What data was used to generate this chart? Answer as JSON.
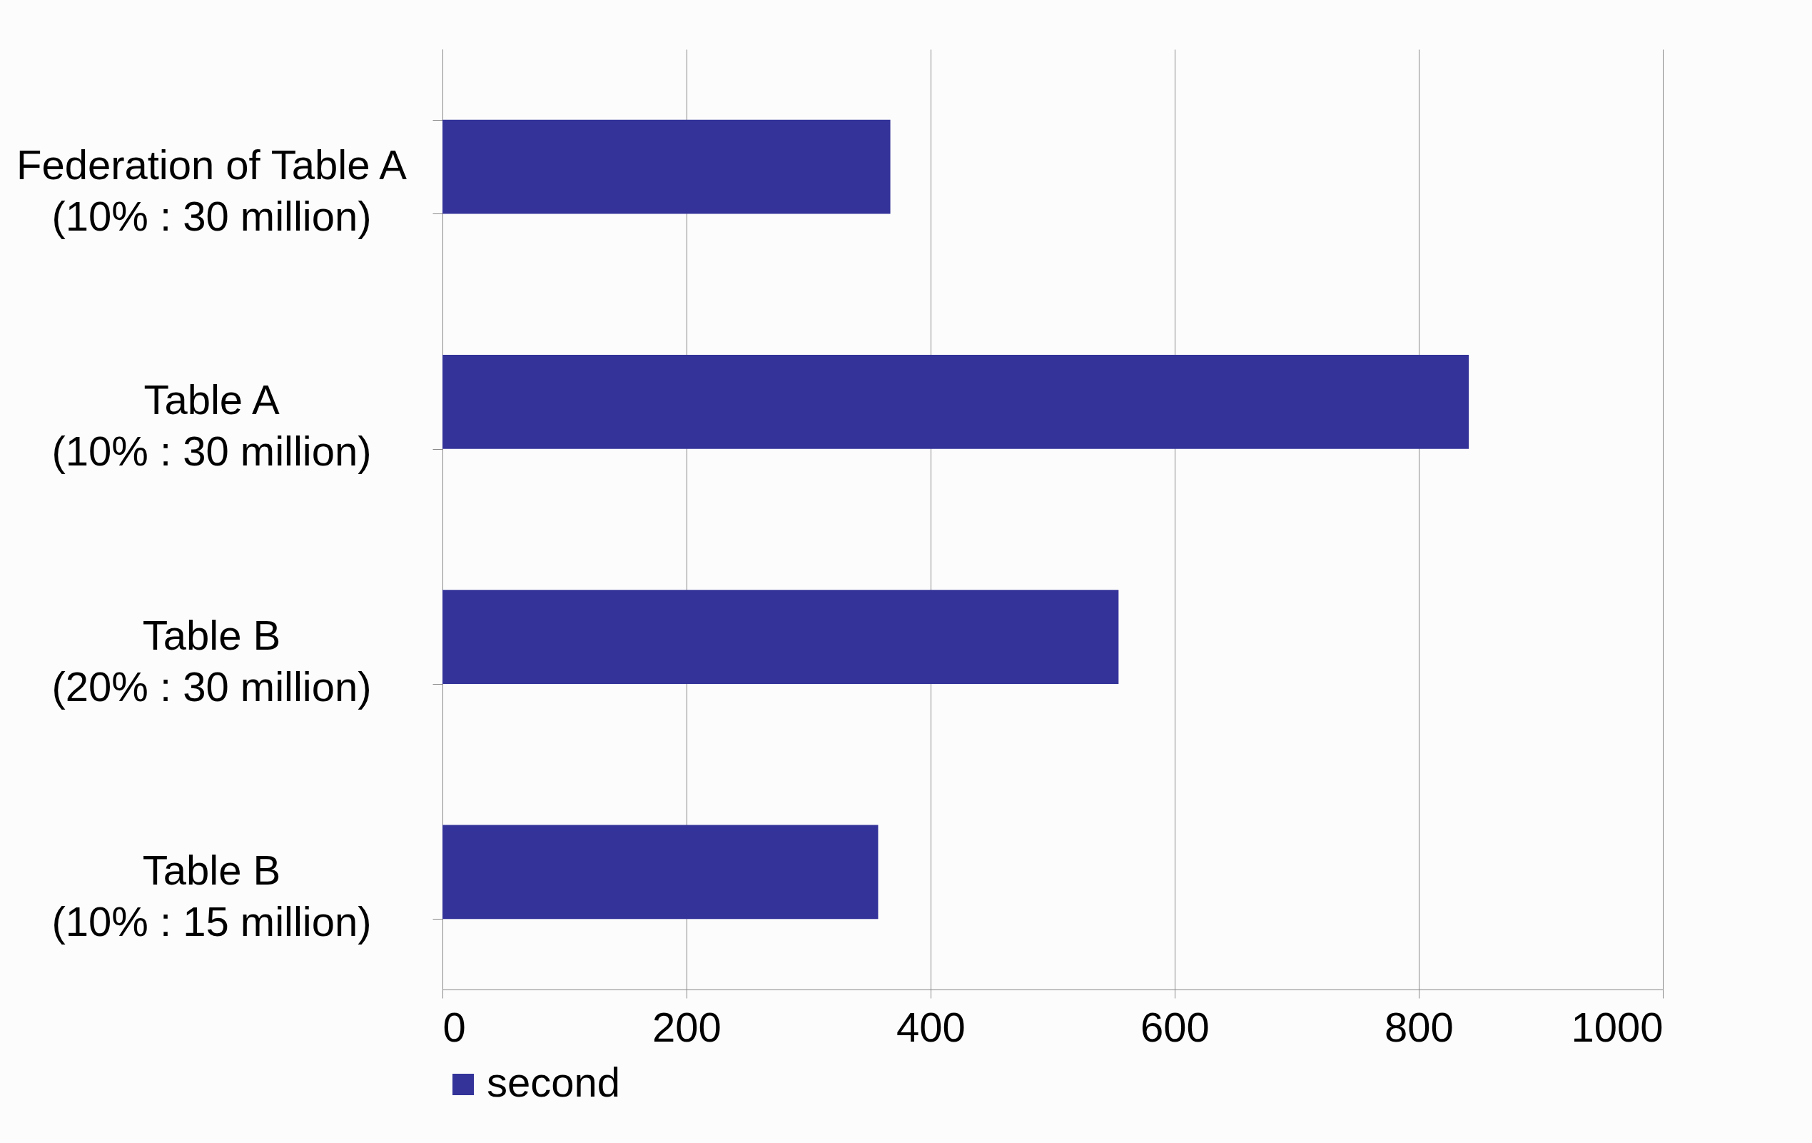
{
  "chart_data": {
    "type": "bar",
    "orientation": "horizontal",
    "categories": [
      "Federation of Table A\n(10% : 30 million)",
      "Table A\n(10% : 30 million)",
      "Table B\n(20% : 30 million)",
      "Table B\n(10% : 15 million)"
    ],
    "series": [
      {
        "name": "second",
        "color": "#333399",
        "values": [
          367,
          841,
          554,
          357
        ]
      }
    ],
    "xlim": [
      0,
      1000
    ],
    "xticks": [
      0,
      200,
      400,
      600,
      800,
      1000
    ],
    "grid": "x",
    "legend": "bottom"
  }
}
